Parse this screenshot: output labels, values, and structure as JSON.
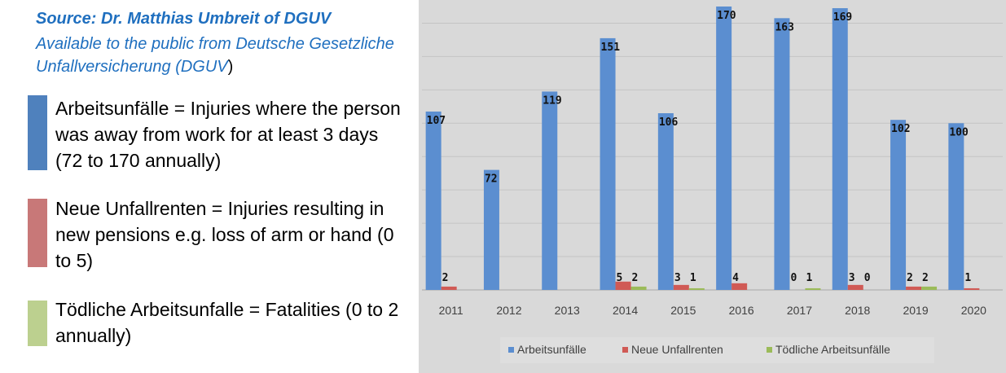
{
  "sidebar": {
    "source_line": "Source: Dr. Matthias Umbreit of DGUV",
    "available_line": "Available to the public from Deutsche Gesetzliche Unfallversicherung (DGUV",
    "available_close": ")",
    "legend": [
      {
        "text": "Arbeitsunfälle = Injuries where the person was away from work for at least 3 days (72 to 170 annually)",
        "color": "#4f81bd"
      },
      {
        "text": "Neue Unfallrenten = Injuries resulting in new pensions e.g. loss of arm or hand (0 to 5)",
        "color": "#c87878"
      },
      {
        "text": "Tödliche Arbeitsunfalle = Fatalities (0 to 2 annually)",
        "color": "#bcd08f"
      }
    ]
  },
  "chart_data": {
    "type": "bar",
    "categories": [
      "2011",
      "2012",
      "2013",
      "2014",
      "2015",
      "2016",
      "2017",
      "2018",
      "2019",
      "2020"
    ],
    "series": [
      {
        "name": "Arbeitsunfälle",
        "color": "#5b8ed0",
        "values": [
          107,
          72,
          119,
          151,
          106,
          170,
          163,
          169,
          102,
          100
        ],
        "labels": [
          "107",
          "72",
          "119",
          "151",
          "106",
          "170",
          "163",
          "169",
          "102",
          "100"
        ]
      },
      {
        "name": "Neue Unfallrenten",
        "color": "#d05a55",
        "values": [
          2,
          null,
          null,
          5,
          3,
          4,
          0,
          3,
          2,
          1
        ],
        "labels": [
          "2",
          "",
          "",
          "5",
          "3",
          "4",
          "0",
          "3",
          "2",
          "1"
        ]
      },
      {
        "name": "Tödliche Arbeitsunfälle",
        "color": "#9bbb59",
        "values": [
          null,
          null,
          null,
          2,
          1,
          null,
          1,
          0,
          2,
          null
        ],
        "labels": [
          "",
          "",
          "",
          "2",
          "1",
          "",
          "1",
          "0",
          "2",
          ""
        ]
      }
    ],
    "ylim": [
      0,
      170
    ],
    "grid": true,
    "legend_position": "bottom",
    "background": "#d9d9d9"
  }
}
